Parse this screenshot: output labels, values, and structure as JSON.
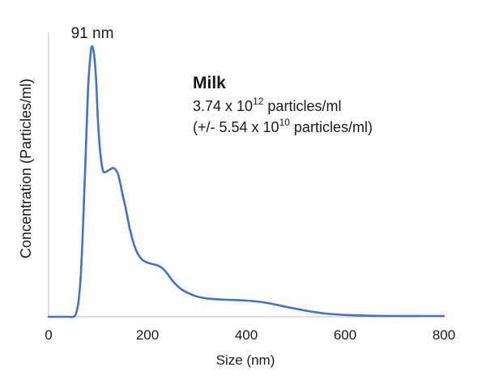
{
  "chart_data": {
    "type": "line",
    "title": "",
    "xlabel": "Size (nm)",
    "ylabel": "Concentration (Particles/ml)",
    "xlim": [
      0,
      800
    ],
    "ylim": [
      0,
      1.0
    ],
    "xticks": [
      0,
      200,
      400,
      600,
      800
    ],
    "grid": false,
    "peak_label": "91 nm",
    "series": [
      {
        "color": "#4472c4",
        "x": [
          0,
          40,
          50,
          55,
          60,
          65,
          70,
          75,
          80,
          85,
          88,
          92,
          96,
          100,
          105,
          110,
          115,
          120,
          125,
          130,
          135,
          140,
          145,
          150,
          155,
          160,
          165,
          170,
          175,
          180,
          185,
          190,
          195,
          200,
          210,
          220,
          230,
          240,
          250,
          260,
          270,
          280,
          300,
          320,
          340,
          360,
          380,
          400,
          420,
          440,
          460,
          480,
          500,
          520,
          540,
          560,
          600,
          650,
          700,
          750,
          800
        ],
        "y": [
          0.0,
          0.0,
          0.0,
          0.01,
          0.05,
          0.15,
          0.35,
          0.6,
          0.85,
          0.97,
          1.0,
          0.97,
          0.88,
          0.72,
          0.6,
          0.54,
          0.535,
          0.54,
          0.545,
          0.55,
          0.545,
          0.53,
          0.495,
          0.45,
          0.41,
          0.365,
          0.32,
          0.285,
          0.255,
          0.235,
          0.22,
          0.21,
          0.205,
          0.2,
          0.195,
          0.19,
          0.18,
          0.16,
          0.135,
          0.115,
          0.1,
          0.09,
          0.075,
          0.068,
          0.065,
          0.063,
          0.062,
          0.06,
          0.057,
          0.052,
          0.045,
          0.037,
          0.03,
          0.023,
          0.017,
          0.012,
          0.007,
          0.004,
          0.003,
          0.003,
          0.003
        ]
      }
    ],
    "annotation": {
      "sample": "Milk",
      "conc_mantissa": "3.74 x 10",
      "conc_exp": "12",
      "conc_unit": " particles/ml",
      "err_prefix": "(+/- 5.54 x 10",
      "err_exp": "10",
      "err_unit": " particles/ml)"
    }
  }
}
